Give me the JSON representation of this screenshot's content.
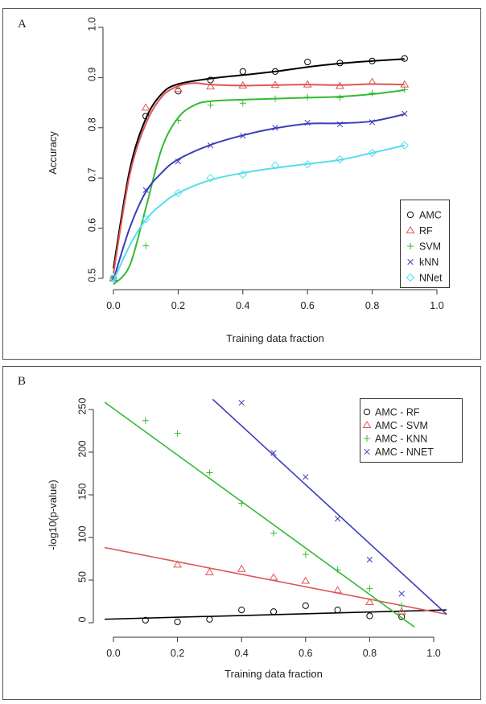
{
  "panels": [
    {
      "letter": "A",
      "chart_data": {
        "type": "scatter",
        "xlabel": "Training data fraction",
        "ylabel": "Accuracy",
        "xlim": [
          0.0,
          1.0
        ],
        "ylim": [
          0.5,
          1.0
        ],
        "xticks": [
          "0.0",
          "0.2",
          "0.4",
          "0.6",
          "0.8",
          "1.0"
        ],
        "yticks": [
          "0.5",
          "0.6",
          "0.7",
          "0.8",
          "0.9",
          "1.0"
        ],
        "legend_position": "bottom-right",
        "grid": false,
        "series": [
          {
            "name": "AMC",
            "color": "#000000",
            "marker": "circle",
            "points": [
              [
                0.0,
                0.5
              ],
              [
                0.1,
                0.823
              ],
              [
                0.2,
                0.873
              ],
              [
                0.3,
                0.895
              ],
              [
                0.4,
                0.912
              ],
              [
                0.5,
                0.912
              ],
              [
                0.6,
                0.931
              ],
              [
                0.7,
                0.929
              ],
              [
                0.8,
                0.933
              ],
              [
                0.9,
                0.938
              ]
            ],
            "smooth": [
              [
                0.0,
                0.52
              ],
              [
                0.05,
                0.715
              ],
              [
                0.1,
                0.818
              ],
              [
                0.15,
                0.868
              ],
              [
                0.2,
                0.887
              ],
              [
                0.3,
                0.898
              ],
              [
                0.4,
                0.905
              ],
              [
                0.5,
                0.912
              ],
              [
                0.6,
                0.921
              ],
              [
                0.7,
                0.928
              ],
              [
                0.8,
                0.933
              ],
              [
                0.9,
                0.937
              ]
            ]
          },
          {
            "name": "RF",
            "color": "#df5555",
            "marker": "triangle",
            "points": [
              [
                0.0,
                0.5
              ],
              [
                0.1,
                0.84
              ],
              [
                0.2,
                0.877
              ],
              [
                0.3,
                0.882
              ],
              [
                0.4,
                0.884
              ],
              [
                0.5,
                0.885
              ],
              [
                0.6,
                0.886
              ],
              [
                0.7,
                0.883
              ],
              [
                0.8,
                0.891
              ],
              [
                0.9,
                0.886
              ]
            ],
            "smooth": [
              [
                0.0,
                0.51
              ],
              [
                0.05,
                0.705
              ],
              [
                0.1,
                0.808
              ],
              [
                0.15,
                0.862
              ],
              [
                0.2,
                0.883
              ],
              [
                0.25,
                0.889
              ],
              [
                0.3,
                0.886
              ],
              [
                0.4,
                0.884
              ],
              [
                0.5,
                0.885
              ],
              [
                0.6,
                0.886
              ],
              [
                0.7,
                0.885
              ],
              [
                0.8,
                0.887
              ],
              [
                0.9,
                0.886
              ]
            ]
          },
          {
            "name": "SVM",
            "color": "#33bb33",
            "marker": "plus",
            "points": [
              [
                0.0,
                0.5
              ],
              [
                0.1,
                0.565
              ],
              [
                0.2,
                0.815
              ],
              [
                0.3,
                0.845
              ],
              [
                0.4,
                0.849
              ],
              [
                0.5,
                0.858
              ],
              [
                0.6,
                0.861
              ],
              [
                0.7,
                0.86
              ],
              [
                0.8,
                0.869
              ],
              [
                0.9,
                0.876
              ]
            ],
            "smooth": [
              [
                0.0,
                0.488
              ],
              [
                0.05,
                0.525
              ],
              [
                0.1,
                0.64
              ],
              [
                0.15,
                0.76
              ],
              [
                0.2,
                0.82
              ],
              [
                0.25,
                0.845
              ],
              [
                0.3,
                0.853
              ],
              [
                0.4,
                0.856
              ],
              [
                0.5,
                0.858
              ],
              [
                0.6,
                0.86
              ],
              [
                0.7,
                0.862
              ],
              [
                0.8,
                0.867
              ],
              [
                0.9,
                0.875
              ]
            ]
          },
          {
            "name": "kNN",
            "color": "#3c3cbb",
            "marker": "cross",
            "points": [
              [
                0.0,
                0.5
              ],
              [
                0.1,
                0.676
              ],
              [
                0.2,
                0.733
              ],
              [
                0.3,
                0.765
              ],
              [
                0.4,
                0.784
              ],
              [
                0.5,
                0.8
              ],
              [
                0.6,
                0.81
              ],
              [
                0.7,
                0.807
              ],
              [
                0.8,
                0.811
              ],
              [
                0.9,
                0.828
              ]
            ],
            "smooth": [
              [
                0.0,
                0.497
              ],
              [
                0.05,
                0.6
              ],
              [
                0.1,
                0.672
              ],
              [
                0.15,
                0.711
              ],
              [
                0.2,
                0.737
              ],
              [
                0.3,
                0.766
              ],
              [
                0.4,
                0.785
              ],
              [
                0.5,
                0.799
              ],
              [
                0.6,
                0.808
              ],
              [
                0.7,
                0.809
              ],
              [
                0.8,
                0.813
              ],
              [
                0.9,
                0.827
              ]
            ]
          },
          {
            "name": "NNet",
            "color": "#55ddee",
            "marker": "diamond",
            "points": [
              [
                0.0,
                0.5
              ],
              [
                0.1,
                0.618
              ],
              [
                0.2,
                0.67
              ],
              [
                0.3,
                0.7
              ],
              [
                0.4,
                0.707
              ],
              [
                0.5,
                0.725
              ],
              [
                0.6,
                0.727
              ],
              [
                0.7,
                0.737
              ],
              [
                0.8,
                0.75
              ],
              [
                0.9,
                0.765
              ]
            ],
            "smooth": [
              [
                0.0,
                0.495
              ],
              [
                0.05,
                0.565
              ],
              [
                0.1,
                0.617
              ],
              [
                0.15,
                0.648
              ],
              [
                0.2,
                0.67
              ],
              [
                0.3,
                0.696
              ],
              [
                0.4,
                0.71
              ],
              [
                0.5,
                0.72
              ],
              [
                0.6,
                0.728
              ],
              [
                0.7,
                0.736
              ],
              [
                0.8,
                0.75
              ],
              [
                0.9,
                0.765
              ]
            ]
          }
        ]
      }
    },
    {
      "letter": "B",
      "chart_data": {
        "type": "scatter",
        "xlabel": "Training data fraction",
        "ylabel": "-log10(p-value)",
        "xlim": [
          -0.04,
          1.04
        ],
        "ylim": [
          -5,
          255
        ],
        "xticks": [
          "0.0",
          "0.2",
          "0.4",
          "0.6",
          "0.8",
          "1.0"
        ],
        "yticks": [
          "0",
          "50",
          "100",
          "150",
          "200",
          "250"
        ],
        "legend_position": "top-right",
        "grid": false,
        "series": [
          {
            "name": "AMC - RF",
            "color": "#000000",
            "marker": "circle",
            "points": [
              [
                0.1,
                3
              ],
              [
                0.2,
                1
              ],
              [
                0.3,
                4
              ],
              [
                0.4,
                15
              ],
              [
                0.5,
                13
              ],
              [
                0.6,
                20
              ],
              [
                0.7,
                15
              ],
              [
                0.8,
                8
              ],
              [
                0.9,
                7
              ]
            ],
            "fit": [
              [
                -0.04,
                4
              ],
              [
                1.04,
                15
              ]
            ]
          },
          {
            "name": "AMC - SVM",
            "color": "#df5555",
            "marker": "triangle",
            "points": [
              [
                0.2,
                68
              ],
              [
                0.3,
                59
              ],
              [
                0.4,
                63
              ],
              [
                0.5,
                53
              ],
              [
                0.6,
                49
              ],
              [
                0.7,
                38
              ],
              [
                0.8,
                24
              ],
              [
                0.9,
                13
              ]
            ],
            "fit": [
              [
                -0.04,
                89
              ],
              [
                1.04,
                10
              ]
            ]
          },
          {
            "name": "AMC - KNN",
            "color": "#33bb33",
            "marker": "plus",
            "points": [
              [
                0.1,
                237
              ],
              [
                0.2,
                222
              ],
              [
                0.3,
                176
              ],
              [
                0.4,
                140
              ],
              [
                0.5,
                105
              ],
              [
                0.6,
                80
              ],
              [
                0.7,
                62
              ],
              [
                0.8,
                40
              ],
              [
                0.9,
                20
              ]
            ],
            "fit": [
              [
                -0.04,
                262
              ],
              [
                0.94,
                -5
              ]
            ]
          },
          {
            "name": "AMC - NNET",
            "color": "#3c3cbb",
            "marker": "cross",
            "points": [
              [
                0.4,
                258
              ],
              [
                0.5,
                199
              ],
              [
                0.6,
                171
              ],
              [
                0.7,
                122
              ],
              [
                0.8,
                74
              ],
              [
                0.9,
                34
              ]
            ],
            "fit": [
              [
                0.31,
                262
              ],
              [
                1.04,
                10
              ]
            ]
          }
        ]
      }
    }
  ]
}
